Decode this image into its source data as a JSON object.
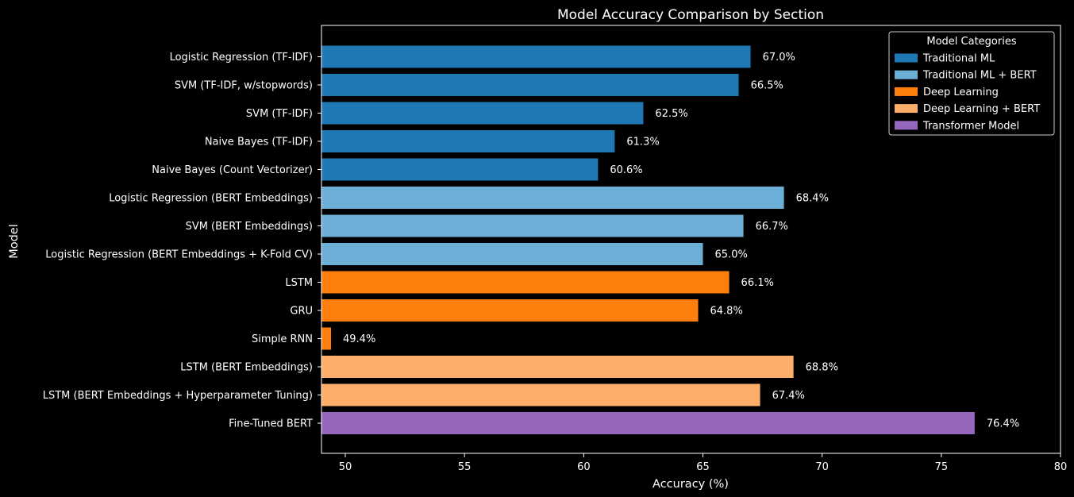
{
  "chart_data": {
    "type": "bar",
    "orientation": "horizontal",
    "title": "Model Accuracy Comparison by Section",
    "xlabel": "Accuracy (%)",
    "ylabel": "Model",
    "xlim": [
      49,
      80
    ],
    "xticks": [
      50,
      55,
      60,
      65,
      70,
      75,
      80
    ],
    "grid": false,
    "background": "#000000",
    "legend": {
      "title": "Model Categories",
      "placement": "top-right",
      "entries": [
        {
          "label": "Traditional ML",
          "color": "#1f77b4"
        },
        {
          "label": "Traditional ML + BERT",
          "color": "#6baed6"
        },
        {
          "label": "Deep Learning",
          "color": "#ff7f0e"
        },
        {
          "label": "Deep Learning + BERT",
          "color": "#fdae6b"
        },
        {
          "label": "Transformer Model",
          "color": "#9467bd"
        }
      ]
    },
    "bars": [
      {
        "category": "Logistic Regression (TF-IDF)",
        "value": 67.0,
        "label": "67.0%",
        "group": 0
      },
      {
        "category": "SVM (TF-IDF, w/stopwords)",
        "value": 66.5,
        "label": "66.5%",
        "group": 0
      },
      {
        "category": "SVM (TF-IDF)",
        "value": 62.5,
        "label": "62.5%",
        "group": 0
      },
      {
        "category": "Naive Bayes (TF-IDF)",
        "value": 61.3,
        "label": "61.3%",
        "group": 0
      },
      {
        "category": "Naive Bayes (Count Vectorizer)",
        "value": 60.6,
        "label": "60.6%",
        "group": 0
      },
      {
        "category": "Logistic Regression (BERT Embeddings)",
        "value": 68.4,
        "label": "68.4%",
        "group": 1
      },
      {
        "category": "SVM (BERT Embeddings)",
        "value": 66.7,
        "label": "66.7%",
        "group": 1
      },
      {
        "category": "Logistic Regression (BERT Embeddings + K-Fold CV)",
        "value": 65.0,
        "label": "65.0%",
        "group": 1
      },
      {
        "category": "LSTM",
        "value": 66.1,
        "label": "66.1%",
        "group": 2
      },
      {
        "category": "GRU",
        "value": 64.8,
        "label": "64.8%",
        "group": 2
      },
      {
        "category": "Simple RNN",
        "value": 49.4,
        "label": "49.4%",
        "group": 2
      },
      {
        "category": "LSTM (BERT Embeddings)",
        "value": 68.8,
        "label": "68.8%",
        "group": 3
      },
      {
        "category": "LSTM (BERT Embeddings + Hyperparameter Tuning)",
        "value": 67.4,
        "label": "67.4%",
        "group": 3
      },
      {
        "category": "Fine-Tuned BERT",
        "value": 76.4,
        "label": "76.4%",
        "group": 4
      }
    ]
  }
}
